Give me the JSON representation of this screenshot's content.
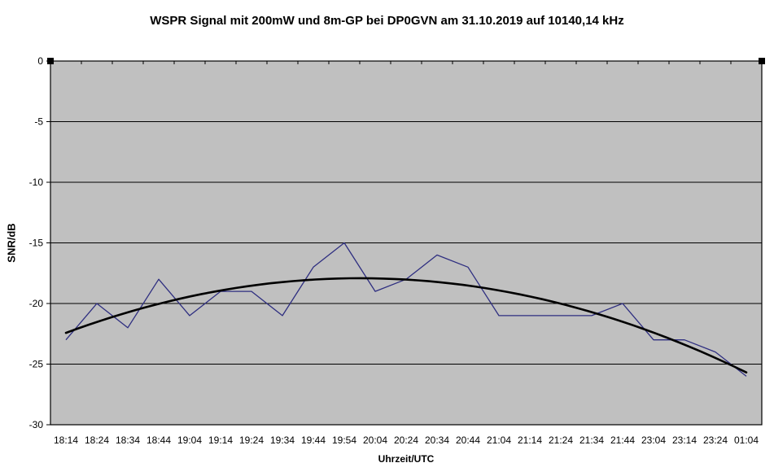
{
  "chart_data": {
    "type": "line",
    "title": "WSPR Signal mit 200mW und 8m-GP bei DP0GVN am 31.10.2019 auf 10140,14 kHz",
    "xlabel": "Uhrzeit/UTC",
    "ylabel": "SNR/dB",
    "categories": [
      "18:14",
      "18:24",
      "18:34",
      "18:44",
      "19:04",
      "19:14",
      "19:24",
      "19:34",
      "19:44",
      "19:54",
      "20:04",
      "20:24",
      "20:34",
      "20:44",
      "21:04",
      "21:14",
      "21:24",
      "21:34",
      "21:44",
      "23:04",
      "23:14",
      "23:24",
      "01:04"
    ],
    "series": [
      {
        "name": "SNR",
        "role": "data",
        "color": "#2e2e80",
        "values": [
          -23,
          -20,
          -22,
          -18,
          -21,
          -19,
          -19,
          -21,
          -17,
          -15,
          -19,
          -18,
          -16,
          -17,
          -21,
          -21,
          -21,
          -21,
          -20,
          -23,
          -23,
          -24,
          -26
        ]
      },
      {
        "name": "Polynomischer Trend (Ordnung 2)",
        "role": "trendline",
        "poly_order": 2,
        "color": "#000000"
      }
    ],
    "ylim": [
      -30,
      0
    ],
    "yticks": [
      0,
      -5,
      -10,
      -15,
      -20,
      -25,
      -30
    ],
    "grid": "horizontal",
    "gridline_color": "#000000",
    "plot_bg": "#c0c0c0",
    "outer_bg": "#ffffff",
    "legend": "none",
    "x_axis_crosses_at": 0,
    "markers": "none"
  }
}
